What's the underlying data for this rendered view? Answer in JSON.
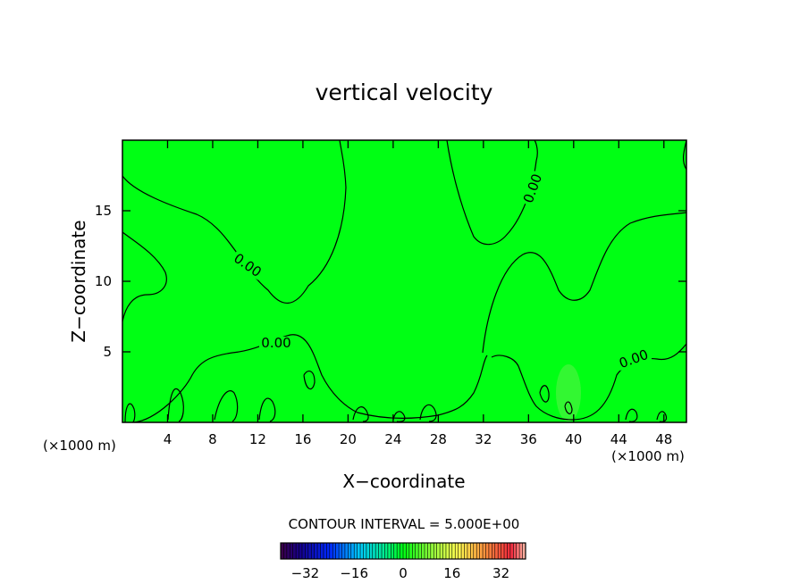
{
  "chart_data": {
    "type": "heatmap",
    "title": "vertical velocity",
    "xlabel": "X−coordinate",
    "ylabel": "Z−coordinate",
    "x_unit_left": "(×1000 m)",
    "x_unit_right": "(×1000 m)",
    "xlim": [
      0,
      50
    ],
    "ylim": [
      0,
      20
    ],
    "x_ticks": [
      4,
      8,
      12,
      16,
      20,
      24,
      28,
      32,
      36,
      40,
      44,
      48
    ],
    "y_ticks": [
      5,
      10,
      15
    ],
    "contour_labels": [
      "0.00",
      "0.00",
      "0.00",
      "0.00"
    ],
    "contour_interval_text": "CONTOUR INTERVAL = 5.000E+00",
    "colorbar": {
      "min": -40,
      "max": 40,
      "tick_values": [
        -32,
        -16,
        0,
        16,
        32
      ],
      "tick_labels": [
        "−32",
        "−16",
        "0",
        "16",
        "32"
      ]
    },
    "field_value_background": 0,
    "grid": false
  }
}
